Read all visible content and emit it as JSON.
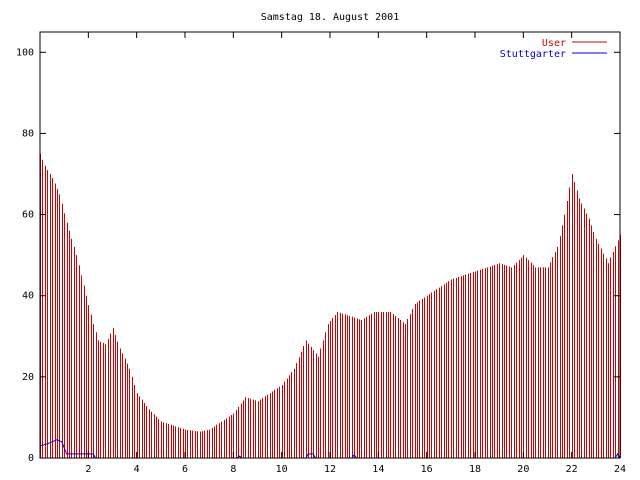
{
  "chart_data": {
    "type": "bar",
    "title": "Samstag 18. August 2001",
    "xlabel": "",
    "ylabel": "",
    "xlim": [
      0,
      24
    ],
    "ylim": [
      0,
      105
    ],
    "xticks": [
      2,
      4,
      6,
      8,
      10,
      12,
      14,
      16,
      18,
      20,
      22,
      24
    ],
    "yticks": [
      0,
      20,
      40,
      60,
      80,
      100
    ],
    "grid": false,
    "legend": "top-right",
    "bar_interval_hours": 0.1,
    "series": [
      {
        "name": "User",
        "color": "#cc0000",
        "style": "impulses",
        "keypoints": [
          [
            0.0,
            75
          ],
          [
            0.2,
            72
          ],
          [
            0.5,
            69
          ],
          [
            0.8,
            65
          ],
          [
            1.1,
            58
          ],
          [
            1.5,
            50
          ],
          [
            1.9,
            40
          ],
          [
            2.2,
            33
          ],
          [
            2.4,
            29
          ],
          [
            2.7,
            28
          ],
          [
            3.0,
            32
          ],
          [
            3.3,
            27
          ],
          [
            3.7,
            22
          ],
          [
            4.0,
            16
          ],
          [
            4.5,
            12
          ],
          [
            5.0,
            9
          ],
          [
            5.5,
            8
          ],
          [
            6.0,
            7
          ],
          [
            6.6,
            6.5
          ],
          [
            7.0,
            7
          ],
          [
            7.5,
            9
          ],
          [
            8.0,
            11
          ],
          [
            8.5,
            15
          ],
          [
            9.0,
            14
          ],
          [
            9.5,
            16
          ],
          [
            10.0,
            18
          ],
          [
            10.5,
            22
          ],
          [
            11.0,
            29
          ],
          [
            11.5,
            25
          ],
          [
            11.9,
            33
          ],
          [
            12.3,
            36
          ],
          [
            12.8,
            35
          ],
          [
            13.3,
            34
          ],
          [
            13.8,
            36
          ],
          [
            14.5,
            36
          ],
          [
            15.1,
            33
          ],
          [
            15.5,
            38
          ],
          [
            16.0,
            40
          ],
          [
            16.5,
            42
          ],
          [
            17.0,
            44
          ],
          [
            17.5,
            45
          ],
          [
            18.0,
            46
          ],
          [
            18.5,
            47
          ],
          [
            19.0,
            48
          ],
          [
            19.5,
            47
          ],
          [
            20.0,
            50
          ],
          [
            20.5,
            47
          ],
          [
            21.0,
            47
          ],
          [
            21.4,
            52
          ],
          [
            21.7,
            60
          ],
          [
            22.0,
            70
          ],
          [
            22.3,
            64
          ],
          [
            22.7,
            59
          ],
          [
            23.0,
            54
          ],
          [
            23.5,
            48
          ],
          [
            24.0,
            55
          ]
        ]
      },
      {
        "name": "Stuttgarter",
        "color": "#0000cc",
        "style": "lines",
        "keypoints": [
          [
            0.0,
            3
          ],
          [
            0.3,
            3.5
          ],
          [
            0.5,
            4
          ],
          [
            0.7,
            4.5
          ],
          [
            0.9,
            4
          ],
          [
            1.1,
            1
          ],
          [
            2.2,
            1
          ],
          [
            2.3,
            0
          ],
          [
            8.15,
            0
          ],
          [
            8.25,
            0.5
          ],
          [
            8.35,
            0
          ],
          [
            11.0,
            0
          ],
          [
            11.1,
            1
          ],
          [
            11.3,
            1
          ],
          [
            11.4,
            0
          ],
          [
            12.9,
            0
          ],
          [
            13.0,
            0.8
          ],
          [
            13.1,
            0
          ],
          [
            23.8,
            0
          ],
          [
            23.9,
            1
          ],
          [
            24.0,
            0
          ]
        ]
      }
    ]
  }
}
